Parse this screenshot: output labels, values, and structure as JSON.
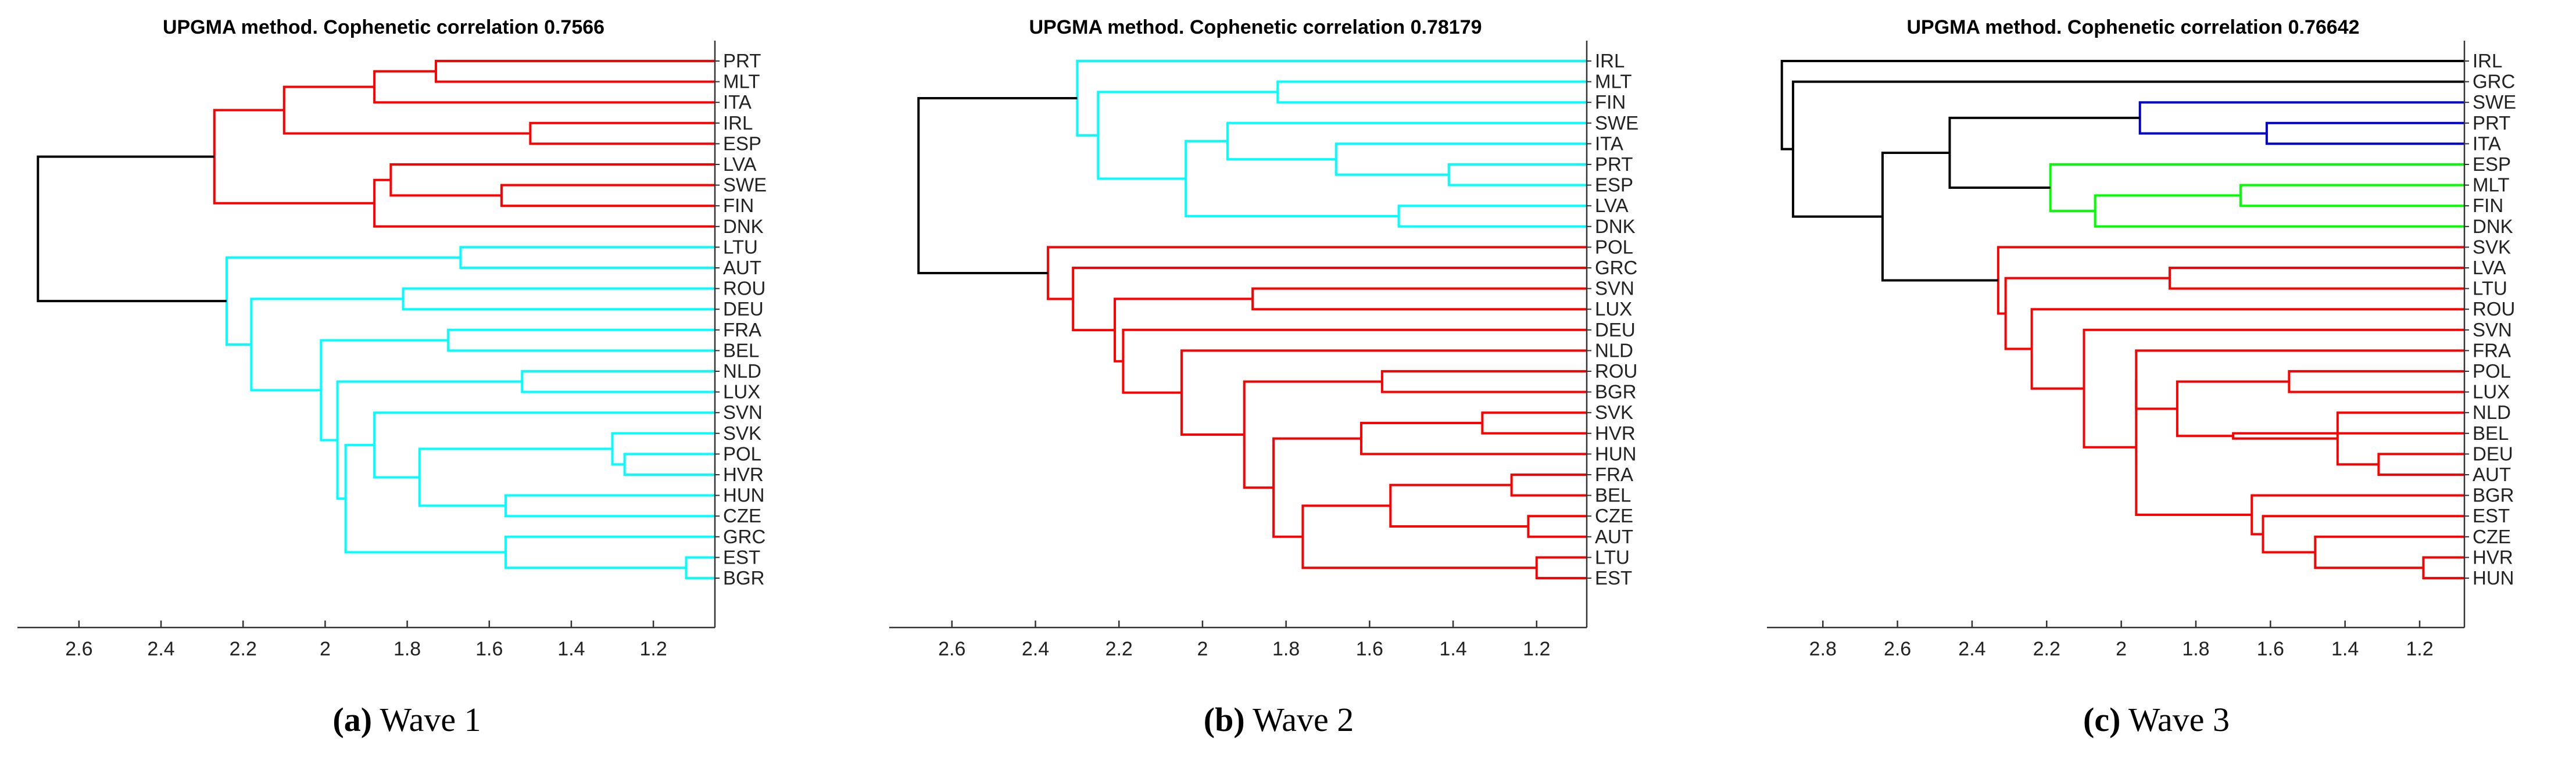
{
  "chart_data": [
    {
      "type": "dendrogram",
      "title": "UPGMA method. Cophenetic correlation 0.7566",
      "caption_letter": "(a)",
      "caption_text": "Wave 1",
      "xlim": [
        2.75,
        1.05
      ],
      "xticks": [
        "2.6",
        "2.4",
        "2.2",
        "2",
        "1.8",
        "1.6",
        "1.4",
        "1.2"
      ],
      "tick_values": [
        2.6,
        2.4,
        2.2,
        2.0,
        1.8,
        1.6,
        1.4,
        1.2
      ],
      "leaves": [
        "PRT",
        "MLT",
        "ITA",
        "IRL",
        "ESP",
        "LVA",
        "SWE",
        "FIN",
        "DNK",
        "LTU",
        "AUT",
        "ROU",
        "DEU",
        "FRA",
        "BEL",
        "NLD",
        "LUX",
        "SVN",
        "SVK",
        "POL",
        "HVR",
        "HUN",
        "CZE",
        "GRC",
        "EST",
        "BGR"
      ],
      "merges": [
        {
          "id": "a",
          "children": [
            "PRT",
            "MLT"
          ],
          "height": 1.73,
          "color": "#ff0000"
        },
        {
          "id": "b",
          "children": [
            "a",
            "ITA"
          ],
          "height": 1.88,
          "color": "#ff0000"
        },
        {
          "id": "c",
          "children": [
            "IRL",
            "ESP"
          ],
          "height": 1.5,
          "color": "#ff0000"
        },
        {
          "id": "d",
          "children": [
            "b",
            "c"
          ],
          "height": 2.1,
          "color": "#ff0000"
        },
        {
          "id": "e",
          "children": [
            "SWE",
            "FIN"
          ],
          "height": 1.57,
          "color": "#ff0000"
        },
        {
          "id": "f",
          "children": [
            "LVA",
            "e"
          ],
          "height": 1.84,
          "color": "#ff0000"
        },
        {
          "id": "g",
          "children": [
            "f",
            "DNK"
          ],
          "height": 1.88,
          "color": "#ff0000"
        },
        {
          "id": "h",
          "children": [
            "d",
            "g"
          ],
          "height": 2.27,
          "color": "#ff0000"
        },
        {
          "id": "i",
          "children": [
            "LTU",
            "AUT"
          ],
          "height": 1.67,
          "color": "#00ffff"
        },
        {
          "id": "j",
          "children": [
            "ROU",
            "DEU"
          ],
          "height": 1.81,
          "color": "#00ffff"
        },
        {
          "id": "k",
          "children": [
            "FRA",
            "BEL"
          ],
          "height": 1.7,
          "color": "#00ffff"
        },
        {
          "id": "l",
          "children": [
            "NLD",
            "LUX"
          ],
          "height": 1.52,
          "color": "#00ffff"
        },
        {
          "id": "m",
          "children": [
            "POL",
            "HVR"
          ],
          "height": 1.27,
          "color": "#00ffff"
        },
        {
          "id": "n",
          "children": [
            "SVK",
            "m"
          ],
          "height": 1.3,
          "color": "#00ffff"
        },
        {
          "id": "o",
          "children": [
            "HUN",
            "CZE"
          ],
          "height": 1.56,
          "color": "#00ffff"
        },
        {
          "id": "p",
          "children": [
            "n",
            "o"
          ],
          "height": 1.77,
          "color": "#00ffff"
        },
        {
          "id": "q",
          "children": [
            "SVN",
            "p"
          ],
          "height": 1.88,
          "color": "#00ffff"
        },
        {
          "id": "r",
          "children": [
            "EST",
            "BGR"
          ],
          "height": 1.12,
          "color": "#00ffff"
        },
        {
          "id": "s",
          "children": [
            "GRC",
            "r"
          ],
          "height": 1.56,
          "color": "#00ffff"
        },
        {
          "id": "t",
          "children": [
            "q",
            "s"
          ],
          "height": 1.95,
          "color": "#00ffff"
        },
        {
          "id": "u",
          "children": [
            "l",
            "t"
          ],
          "height": 1.97,
          "color": "#00ffff"
        },
        {
          "id": "v",
          "children": [
            "k",
            "u"
          ],
          "height": 2.01,
          "color": "#00ffff"
        },
        {
          "id": "w",
          "children": [
            "j",
            "v"
          ],
          "height": 2.18,
          "color": "#00ffff"
        },
        {
          "id": "x",
          "children": [
            "i",
            "w"
          ],
          "height": 2.24,
          "color": "#00ffff"
        },
        {
          "id": "root",
          "children": [
            "h",
            "x"
          ],
          "height": 2.7,
          "color": "#000000"
        }
      ]
    },
    {
      "type": "dendrogram",
      "title": "UPGMA method. Cophenetic correlation 0.78179",
      "caption_letter": "(b)",
      "caption_text": "Wave 2",
      "xlim": [
        2.75,
        1.08
      ],
      "xticks": [
        "2.6",
        "2.4",
        "2.2",
        "2",
        "1.8",
        "1.6",
        "1.4",
        "1.2"
      ],
      "tick_values": [
        2.6,
        2.4,
        2.2,
        2.0,
        1.8,
        1.6,
        1.4,
        1.2
      ],
      "leaves": [
        "IRL",
        "MLT",
        "FIN",
        "SWE",
        "ITA",
        "PRT",
        "ESP",
        "LVA",
        "DNK",
        "POL",
        "GRC",
        "SVN",
        "LUX",
        "DEU",
        "NLD",
        "ROU",
        "BGR",
        "SVK",
        "HVR",
        "HUN",
        "FRA",
        "BEL",
        "CZE",
        "AUT",
        "LTU",
        "EST"
      ],
      "merges": [
        {
          "id": "a",
          "children": [
            "MLT",
            "FIN"
          ],
          "height": 1.82,
          "color": "#00ffff"
        },
        {
          "id": "b",
          "children": [
            "PRT",
            "ESP"
          ],
          "height": 1.41,
          "color": "#00ffff"
        },
        {
          "id": "c",
          "children": [
            "ITA",
            "b"
          ],
          "height": 1.68,
          "color": "#00ffff"
        },
        {
          "id": "d",
          "children": [
            "SWE",
            "c"
          ],
          "height": 1.94,
          "color": "#00ffff"
        },
        {
          "id": "e",
          "children": [
            "LVA",
            "DNK"
          ],
          "height": 1.53,
          "color": "#00ffff"
        },
        {
          "id": "f",
          "children": [
            "d",
            "e"
          ],
          "height": 2.04,
          "color": "#00ffff"
        },
        {
          "id": "g",
          "children": [
            "a",
            "f"
          ],
          "height": 2.25,
          "color": "#00ffff"
        },
        {
          "id": "h",
          "children": [
            "IRL",
            "g"
          ],
          "height": 2.3,
          "color": "#00ffff"
        },
        {
          "id": "i",
          "children": [
            "SVN",
            "LUX"
          ],
          "height": 1.88,
          "color": "#ff0000"
        },
        {
          "id": "j",
          "children": [
            "ROU",
            "BGR"
          ],
          "height": 1.57,
          "color": "#ff0000"
        },
        {
          "id": "k",
          "children": [
            "SVK",
            "HVR"
          ],
          "height": 1.33,
          "color": "#ff0000"
        },
        {
          "id": "l",
          "children": [
            "k",
            "HUN"
          ],
          "height": 1.62,
          "color": "#ff0000"
        },
        {
          "id": "m",
          "children": [
            "FRA",
            "BEL"
          ],
          "height": 1.26,
          "color": "#ff0000"
        },
        {
          "id": "n",
          "children": [
            "CZE",
            "AUT"
          ],
          "height": 1.22,
          "color": "#ff0000"
        },
        {
          "id": "o",
          "children": [
            "m",
            "n"
          ],
          "height": 1.55,
          "color": "#ff0000"
        },
        {
          "id": "p",
          "children": [
            "LTU",
            "EST"
          ],
          "height": 1.2,
          "color": "#ff0000"
        },
        {
          "id": "q",
          "children": [
            "o",
            "p"
          ],
          "height": 1.76,
          "color": "#ff0000"
        },
        {
          "id": "r",
          "children": [
            "l",
            "q"
          ],
          "height": 1.83,
          "color": "#ff0000"
        },
        {
          "id": "s",
          "children": [
            "j",
            "r"
          ],
          "height": 1.9,
          "color": "#ff0000"
        },
        {
          "id": "t",
          "children": [
            "NLD",
            "s"
          ],
          "height": 2.05,
          "color": "#ff0000"
        },
        {
          "id": "u",
          "children": [
            "DEU",
            "t"
          ],
          "height": 2.19,
          "color": "#ff0000"
        },
        {
          "id": "v",
          "children": [
            "i",
            "u"
          ],
          "height": 2.21,
          "color": "#ff0000"
        },
        {
          "id": "w",
          "children": [
            "GRC",
            "v"
          ],
          "height": 2.31,
          "color": "#ff0000"
        },
        {
          "id": "x",
          "children": [
            "POL",
            "w"
          ],
          "height": 2.37,
          "color": "#ff0000"
        },
        {
          "id": "root",
          "children": [
            "h",
            "x"
          ],
          "height": 2.68,
          "color": "#000000"
        }
      ]
    },
    {
      "type": "dendrogram",
      "title": "UPGMA method. Cophenetic correlation 0.76642",
      "caption_letter": "(c)",
      "caption_text": "Wave 3",
      "xlim": [
        2.95,
        1.08
      ],
      "xticks": [
        "2.8",
        "2.6",
        "2.4",
        "2.2",
        "2",
        "1.8",
        "1.6",
        "1.4",
        "1.2"
      ],
      "tick_values": [
        2.8,
        2.6,
        2.4,
        2.2,
        2.0,
        1.8,
        1.6,
        1.4,
        1.2
      ],
      "leaves": [
        "IRL",
        "GRC",
        "SWE",
        "PRT",
        "ITA",
        "ESP",
        "MLT",
        "FIN",
        "DNK",
        "SVK",
        "LVA",
        "LTU",
        "ROU",
        "SVN",
        "FRA",
        "POL",
        "LUX",
        "NLD",
        "BEL",
        "DEU",
        "AUT",
        "BGR",
        "EST",
        "CZE",
        "HVR",
        "HUN"
      ],
      "merges": [
        {
          "id": "a",
          "children": [
            "PRT",
            "ITA"
          ],
          "height": 1.61,
          "color": "#0000cd"
        },
        {
          "id": "b",
          "children": [
            "SWE",
            "a"
          ],
          "height": 1.95,
          "color": "#0000cd"
        },
        {
          "id": "c",
          "children": [
            "MLT",
            "FIN"
          ],
          "height": 1.68,
          "color": "#00ff00"
        },
        {
          "id": "d",
          "children": [
            "c",
            "DNK"
          ],
          "height": 2.07,
          "color": "#00ff00"
        },
        {
          "id": "e",
          "children": [
            "ESP",
            "d"
          ],
          "height": 2.19,
          "color": "#00ff00"
        },
        {
          "id": "f",
          "children": [
            "b",
            "e"
          ],
          "height": 2.46,
          "color": "#000000"
        },
        {
          "id": "g",
          "children": [
            "LVA",
            "LTU"
          ],
          "height": 1.87,
          "color": "#ff0000"
        },
        {
          "id": "h",
          "children": [
            "POL",
            "LUX"
          ],
          "height": 1.55,
          "color": "#ff0000"
        },
        {
          "id": "i",
          "children": [
            "DEU",
            "AUT"
          ],
          "height": 1.31,
          "color": "#ff0000"
        },
        {
          "id": "j",
          "children": [
            "NLD",
            "i"
          ],
          "height": 1.42,
          "color": "#ff0000"
        },
        {
          "id": "k",
          "children": [
            "BEL",
            "j"
          ],
          "height": 1.7,
          "color": "#ff0000"
        },
        {
          "id": "l",
          "children": [
            "h",
            "k"
          ],
          "height": 1.85,
          "color": "#ff0000"
        },
        {
          "id": "m",
          "children": [
            "FRA",
            "l"
          ],
          "height": 1.96,
          "color": "#ff0000"
        },
        {
          "id": "n",
          "children": [
            "HVR",
            "HUN"
          ],
          "height": 1.19,
          "color": "#ff0000"
        },
        {
          "id": "o",
          "children": [
            "CZE",
            "n"
          ],
          "height": 1.48,
          "color": "#ff0000"
        },
        {
          "id": "p",
          "children": [
            "EST",
            "o"
          ],
          "height": 1.62,
          "color": "#ff0000"
        },
        {
          "id": "q",
          "children": [
            "BGR",
            "p"
          ],
          "height": 1.65,
          "color": "#ff0000"
        },
        {
          "id": "r",
          "children": [
            "m",
            "q"
          ],
          "height": 1.96,
          "color": "#ff0000"
        },
        {
          "id": "s",
          "children": [
            "SVN",
            "r"
          ],
          "height": 2.1,
          "color": "#ff0000"
        },
        {
          "id": "t",
          "children": [
            "ROU",
            "s"
          ],
          "height": 2.24,
          "color": "#ff0000"
        },
        {
          "id": "u",
          "children": [
            "g",
            "t"
          ],
          "height": 2.31,
          "color": "#ff0000"
        },
        {
          "id": "v",
          "children": [
            "SVK",
            "u"
          ],
          "height": 2.33,
          "color": "#ff0000"
        },
        {
          "id": "w",
          "children": [
            "f",
            "v"
          ],
          "height": 2.64,
          "color": "#000000"
        },
        {
          "id": "x",
          "children": [
            "GRC",
            "w"
          ],
          "height": 2.88,
          "color": "#000000"
        },
        {
          "id": "root",
          "children": [
            "IRL",
            "x"
          ],
          "height": 2.91,
          "color": "#000000"
        }
      ]
    }
  ]
}
